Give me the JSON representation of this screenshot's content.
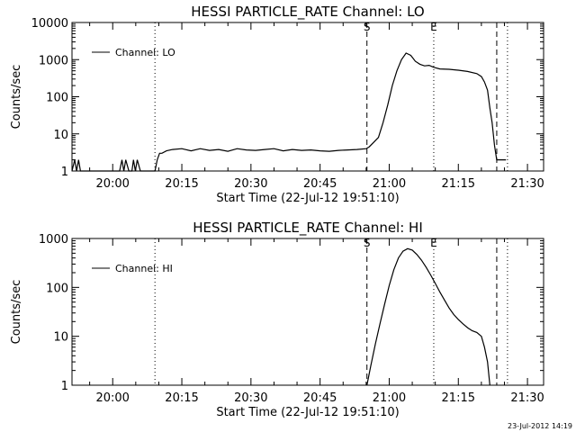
{
  "chart_data": [
    {
      "type": "line",
      "title": "HESSI PARTICLE_RATE Channel: LO",
      "xlabel": "Start Time (22-Jul-12 19:51:10)",
      "ylabel": "Counts/sec",
      "yscale": "log",
      "ylim": [
        1,
        10000
      ],
      "xlim": [
        "19:51:10",
        "21:33:30"
      ],
      "xticks": [
        "20:00",
        "20:15",
        "20:30",
        "20:45",
        "21:00",
        "21:15",
        "21:30"
      ],
      "yticks": [
        "1",
        "10",
        "100",
        "1000",
        "10000"
      ],
      "legend": "top-left",
      "series": [
        {
          "name": "Channel: LO",
          "x": [
            "19:51:10",
            "19:51:45",
            "19:52:10",
            "19:52:35",
            "19:53:00",
            "19:54:00",
            "19:56:00",
            "19:58:00",
            "20:00:00",
            "20:01:30",
            "20:02:00",
            "20:02:25",
            "20:02:50",
            "20:03:30",
            "20:04:10",
            "20:04:30",
            "20:04:55",
            "20:05:20",
            "20:06:00",
            "20:08:00",
            "20:09:10",
            "20:09:40",
            "20:10:10",
            "20:10:40",
            "20:11:40",
            "20:13:00",
            "20:15:00",
            "20:17:00",
            "20:19:00",
            "20:21:00",
            "20:23:00",
            "20:25:00",
            "20:27:00",
            "20:29:00",
            "20:31:00",
            "20:33:00",
            "20:35:00",
            "20:37:00",
            "20:39:00",
            "20:41:00",
            "20:43:00",
            "20:45:00",
            "20:47:00",
            "20:49:00",
            "20:51:00",
            "20:53:00",
            "20:55:00",
            "20:55:40",
            "20:56:40",
            "20:57:40",
            "20:58:40",
            "20:59:40",
            "21:00:40",
            "21:01:40",
            "21:02:40",
            "21:03:40",
            "21:04:40",
            "21:05:40",
            "21:06:40",
            "21:07:40",
            "21:08:40",
            "21:09:40",
            "21:11:00",
            "21:13:00",
            "21:15:00",
            "21:17:00",
            "21:19:00",
            "21:20:00",
            "21:20:40",
            "21:21:20",
            "21:21:50",
            "21:22:20",
            "21:22:50",
            "21:23:20",
            "21:24:10",
            "21:24:20",
            "21:25:20"
          ],
          "y": [
            1,
            2,
            1,
            2,
            1,
            1,
            1,
            1,
            1,
            1,
            2,
            1,
            2,
            1,
            1,
            2,
            1,
            2,
            1,
            1,
            1,
            2,
            3,
            3,
            3.5,
            3.8,
            4,
            3.5,
            4,
            3.6,
            3.8,
            3.4,
            4,
            3.7,
            3.6,
            3.8,
            4,
            3.5,
            3.8,
            3.6,
            3.7,
            3.5,
            3.4,
            3.6,
            3.7,
            3.8,
            4,
            4.5,
            6,
            8,
            20,
            60,
            200,
            500,
            1000,
            1500,
            1300,
            900,
            750,
            680,
            700,
            620,
            560,
            550,
            520,
            480,
            420,
            350,
            250,
            150,
            50,
            20,
            5,
            2,
            2,
            2,
            2
          ]
        }
      ],
      "markers": [
        {
          "label": "S",
          "time": "20:55:10",
          "style": "dashed"
        },
        {
          "label": "E",
          "time": "21:09:40",
          "style": "dotted"
        },
        {
          "label": "",
          "time": "21:23:20",
          "style": "dashed"
        },
        {
          "label": "",
          "time": "21:25:40",
          "style": "dotted"
        },
        {
          "label": "",
          "time": "20:09:10",
          "style": "dotted"
        }
      ]
    },
    {
      "type": "line",
      "title": "HESSI PARTICLE_RATE Channel: HI",
      "xlabel": "Start Time (22-Jul-12 19:51:10)",
      "ylabel": "Counts/sec",
      "yscale": "log",
      "ylim": [
        1,
        1000
      ],
      "xlim": [
        "19:51:10",
        "21:33:30"
      ],
      "xticks": [
        "20:00",
        "20:15",
        "20:30",
        "20:45",
        "21:00",
        "21:15",
        "21:30"
      ],
      "yticks": [
        "1",
        "10",
        "100",
        "1000"
      ],
      "legend": "top-left",
      "series": [
        {
          "name": "Channel: HI",
          "x": [
            "20:55:10",
            "20:56:00",
            "20:57:00",
            "20:58:00",
            "20:59:00",
            "21:00:00",
            "21:01:00",
            "21:02:00",
            "21:03:00",
            "21:04:00",
            "21:05:00",
            "21:06:00",
            "21:07:00",
            "21:08:00",
            "21:09:00",
            "21:10:00",
            "21:11:00",
            "21:12:00",
            "21:13:00",
            "21:14:00",
            "21:15:00",
            "21:16:00",
            "21:17:00",
            "21:18:00",
            "21:19:00",
            "21:20:00",
            "21:20:40",
            "21:21:20",
            "21:21:50"
          ],
          "y": [
            1,
            2.5,
            7,
            18,
            45,
            110,
            230,
            400,
            550,
            620,
            580,
            470,
            360,
            260,
            180,
            120,
            80,
            55,
            38,
            28,
            22,
            18,
            15,
            13,
            12,
            10,
            6,
            3,
            1
          ]
        }
      ],
      "markers": [
        {
          "label": "S",
          "time": "20:55:10",
          "style": "dashed"
        },
        {
          "label": "E",
          "time": "21:09:40",
          "style": "dotted"
        },
        {
          "label": "",
          "time": "21:23:20",
          "style": "dashed"
        },
        {
          "label": "",
          "time": "21:25:40",
          "style": "dotted"
        },
        {
          "label": "",
          "time": "20:09:10",
          "style": "dotted"
        }
      ]
    }
  ],
  "footer": {
    "timestamp": "23-Jul-2012 14:19"
  }
}
